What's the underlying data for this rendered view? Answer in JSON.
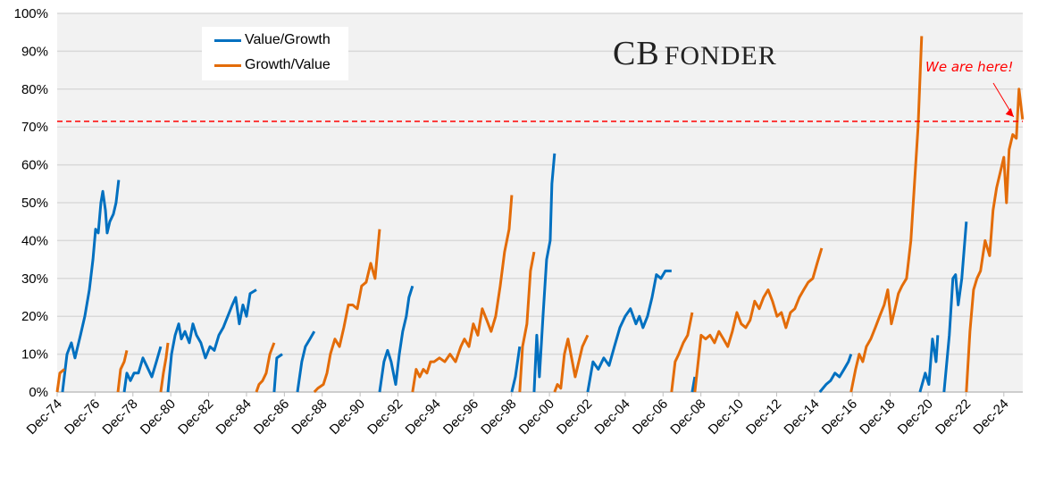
{
  "chart_data": {
    "type": "line",
    "title": "",
    "xlabel": "",
    "ylabel": "",
    "x_unit_note": "t = years after Dec-74",
    "xlim": [
      0,
      51
    ],
    "ylim": [
      0,
      100
    ],
    "grid": true,
    "legend_placement": "top-left",
    "y_ticks": [
      0,
      10,
      20,
      30,
      40,
      50,
      60,
      70,
      80,
      90,
      100
    ],
    "y_tick_labels": [
      "0%",
      "10%",
      "20%",
      "30%",
      "40%",
      "50%",
      "60%",
      "70%",
      "80%",
      "90%",
      "100%"
    ],
    "x_ticks": [
      0,
      2,
      4,
      6,
      8,
      10,
      12,
      14,
      16,
      18,
      20,
      22,
      24,
      26,
      28,
      30,
      32,
      34,
      36,
      38,
      40,
      42,
      44,
      46,
      48,
      50
    ],
    "x_tick_labels": [
      "Dec-74",
      "Dec-76",
      "Dec-78",
      "Dec-80",
      "Dec-82",
      "Dec-84",
      "Dec-86",
      "Dec-88",
      "Dec-90",
      "Dec-92",
      "Dec-94",
      "Dec-96",
      "Dec-98",
      "Dec-00",
      "Dec-02",
      "Dec-04",
      "Dec-06",
      "Dec-08",
      "Dec-10",
      "Dec-12",
      "Dec-14",
      "Dec-16",
      "Dec-18",
      "Dec-20",
      "Dec-22",
      "Dec-24"
    ],
    "reference_line": {
      "value": 71.5,
      "color": "#ff0000",
      "style": "dashed"
    },
    "annotation": {
      "text": "We are here!",
      "color": "#ff0000",
      "points_to": [
        50.8,
        71.5
      ]
    },
    "logo": "CB FONDER",
    "series": [
      {
        "name": "Value/Growth",
        "color": "#0070c0",
        "segments": [
          [
            [
              0.28,
              0
            ],
            [
              0.52,
              10
            ],
            [
              0.75,
              13
            ],
            [
              0.94,
              9
            ],
            [
              1.23,
              15
            ],
            [
              1.46,
              20
            ],
            [
              1.7,
              27
            ],
            [
              1.89,
              35
            ],
            [
              2.03,
              43
            ],
            [
              2.17,
              42
            ],
            [
              2.31,
              50
            ],
            [
              2.41,
              53
            ],
            [
              2.55,
              48
            ],
            [
              2.64,
              42
            ],
            [
              2.78,
              45
            ],
            [
              2.97,
              47
            ],
            [
              3.11,
              50
            ],
            [
              3.25,
              56
            ]
          ],
          [
            [
              3.54,
              0
            ],
            [
              3.68,
              5
            ],
            [
              3.87,
              3
            ],
            [
              4.06,
              5
            ],
            [
              4.29,
              5
            ],
            [
              4.53,
              9
            ],
            [
              4.72,
              7
            ],
            [
              5.0,
              4
            ],
            [
              5.24,
              8
            ],
            [
              5.47,
              12
            ]
          ],
          [
            [
              5.85,
              0
            ],
            [
              6.04,
              10
            ],
            [
              6.23,
              15
            ],
            [
              6.42,
              18
            ],
            [
              6.56,
              14
            ],
            [
              6.75,
              16
            ],
            [
              6.98,
              13
            ],
            [
              7.17,
              18
            ],
            [
              7.36,
              15
            ],
            [
              7.59,
              13
            ],
            [
              7.83,
              9
            ],
            [
              8.07,
              12
            ],
            [
              8.3,
              11
            ],
            [
              8.54,
              15
            ],
            [
              8.77,
              17
            ],
            [
              9.01,
              20
            ],
            [
              9.25,
              23
            ],
            [
              9.43,
              25
            ],
            [
              9.62,
              18
            ],
            [
              9.81,
              23
            ],
            [
              10.0,
              20
            ],
            [
              10.19,
              26
            ],
            [
              10.52,
              27
            ]
          ],
          [
            [
              11.46,
              0
            ],
            [
              11.6,
              9
            ],
            [
              11.89,
              10
            ]
          ],
          [
            [
              12.69,
              0
            ],
            [
              12.92,
              8
            ],
            [
              13.11,
              12
            ],
            [
              13.35,
              14
            ],
            [
              13.58,
              16
            ]
          ],
          [
            [
              17.03,
              0
            ],
            [
              17.26,
              8
            ],
            [
              17.45,
              11
            ],
            [
              17.64,
              8
            ],
            [
              17.88,
              2
            ],
            [
              18.07,
              10
            ],
            [
              18.25,
              16
            ],
            [
              18.44,
              20
            ],
            [
              18.58,
              25
            ],
            [
              18.77,
              28
            ]
          ],
          [
            [
              24.01,
              0
            ],
            [
              24.2,
              4
            ],
            [
              24.43,
              12
            ]
          ],
          [
            [
              25.19,
              0
            ],
            [
              25.33,
              15
            ],
            [
              25.47,
              4
            ],
            [
              25.66,
              20
            ],
            [
              25.85,
              35
            ],
            [
              26.04,
              40
            ],
            [
              26.13,
              55
            ],
            [
              26.27,
              63
            ]
          ],
          [
            [
              28.02,
              0
            ],
            [
              28.3,
              8
            ],
            [
              28.58,
              6
            ],
            [
              28.87,
              9
            ],
            [
              29.15,
              7
            ],
            [
              29.43,
              12
            ],
            [
              29.72,
              17
            ],
            [
              30.0,
              20
            ],
            [
              30.28,
              22
            ],
            [
              30.57,
              18
            ],
            [
              30.75,
              20
            ],
            [
              30.94,
              17
            ],
            [
              31.18,
              20
            ],
            [
              31.42,
              25
            ],
            [
              31.65,
              31
            ],
            [
              31.89,
              30
            ],
            [
              32.12,
              32
            ],
            [
              32.45,
              32
            ]
          ],
          [
            [
              33.54,
              0
            ],
            [
              33.68,
              4
            ]
          ],
          [
            [
              40.28,
              0
            ],
            [
              40.61,
              2
            ],
            [
              40.85,
              3
            ],
            [
              41.08,
              5
            ],
            [
              41.32,
              4
            ],
            [
              41.56,
              6
            ],
            [
              41.79,
              8
            ],
            [
              41.93,
              10
            ]
          ],
          [
            [
              45.57,
              0
            ],
            [
              45.85,
              5
            ],
            [
              46.04,
              2
            ],
            [
              46.23,
              14
            ],
            [
              46.42,
              8
            ],
            [
              46.51,
              15
            ]
          ],
          [
            [
              46.84,
              0
            ],
            [
              47.12,
              15
            ],
            [
              47.31,
              30
            ],
            [
              47.45,
              31
            ],
            [
              47.59,
              23
            ],
            [
              47.78,
              30
            ],
            [
              48.02,
              45
            ]
          ]
        ]
      },
      {
        "name": "Growth/Value",
        "color": "#e36c09",
        "segments": [
          [
            [
              0,
              0
            ],
            [
              0.14,
              5
            ],
            [
              0.38,
              6
            ]
          ],
          [
            [
              3.21,
              0
            ],
            [
              3.35,
              6
            ],
            [
              3.54,
              8
            ],
            [
              3.68,
              11
            ]
          ],
          [
            [
              5.47,
              0
            ],
            [
              5.61,
              5
            ],
            [
              5.75,
              9
            ],
            [
              5.85,
              13
            ]
          ],
          [
            [
              10.52,
              0
            ],
            [
              10.66,
              2
            ],
            [
              10.85,
              3
            ],
            [
              11.04,
              5
            ],
            [
              11.23,
              10
            ],
            [
              11.46,
              13
            ]
          ],
          [
            [
              13.58,
              0
            ],
            [
              13.77,
              1
            ],
            [
              14.06,
              2
            ],
            [
              14.25,
              5
            ],
            [
              14.43,
              10
            ],
            [
              14.67,
              14
            ],
            [
              14.91,
              12
            ],
            [
              15.14,
              17
            ],
            [
              15.38,
              23
            ],
            [
              15.61,
              23
            ],
            [
              15.85,
              22
            ],
            [
              16.08,
              28
            ],
            [
              16.32,
              29
            ],
            [
              16.56,
              34
            ],
            [
              16.79,
              30
            ],
            [
              17.03,
              43
            ]
          ],
          [
            [
              18.77,
              0
            ],
            [
              18.96,
              6
            ],
            [
              19.15,
              4
            ],
            [
              19.34,
              6
            ],
            [
              19.53,
              5
            ],
            [
              19.72,
              8
            ],
            [
              19.91,
              8
            ],
            [
              20.19,
              9
            ],
            [
              20.47,
              8
            ],
            [
              20.75,
              10
            ],
            [
              21.04,
              8
            ],
            [
              21.32,
              12
            ],
            [
              21.51,
              14
            ],
            [
              21.75,
              12
            ],
            [
              21.98,
              18
            ],
            [
              22.22,
              15
            ],
            [
              22.45,
              22
            ],
            [
              22.69,
              19
            ],
            [
              22.92,
              16
            ],
            [
              23.16,
              20
            ],
            [
              23.4,
              28
            ],
            [
              23.63,
              37
            ],
            [
              23.87,
              43
            ],
            [
              24.01,
              52
            ]
          ],
          [
            [
              24.43,
              0
            ],
            [
              24.58,
              12
            ],
            [
              24.81,
              18
            ],
            [
              25.0,
              32
            ],
            [
              25.19,
              37
            ]
          ],
          [
            [
              26.27,
              0
            ],
            [
              26.42,
              2
            ],
            [
              26.6,
              1
            ],
            [
              26.79,
              10
            ],
            [
              26.98,
              14
            ],
            [
              27.17,
              9
            ],
            [
              27.36,
              4
            ],
            [
              27.55,
              8
            ],
            [
              27.74,
              12
            ],
            [
              28.02,
              15
            ]
          ],
          [
            [
              32.45,
              0
            ],
            [
              32.64,
              8
            ],
            [
              32.83,
              10
            ],
            [
              33.07,
              13
            ],
            [
              33.3,
              15
            ],
            [
              33.54,
              21
            ]
          ],
          [
            [
              33.68,
              0
            ],
            [
              34.01,
              15
            ],
            [
              34.25,
              14
            ],
            [
              34.48,
              15
            ],
            [
              34.72,
              13
            ],
            [
              34.95,
              16
            ],
            [
              35.19,
              14
            ],
            [
              35.42,
              12
            ],
            [
              35.66,
              16
            ],
            [
              35.9,
              21
            ],
            [
              36.13,
              18
            ],
            [
              36.37,
              17
            ],
            [
              36.6,
              19
            ],
            [
              36.84,
              24
            ],
            [
              37.08,
              22
            ],
            [
              37.31,
              25
            ],
            [
              37.55,
              27
            ],
            [
              37.78,
              24
            ],
            [
              38.02,
              20
            ],
            [
              38.25,
              21
            ],
            [
              38.49,
              17
            ],
            [
              38.73,
              21
            ],
            [
              38.96,
              22
            ],
            [
              39.2,
              25
            ],
            [
              39.43,
              27
            ],
            [
              39.67,
              29
            ],
            [
              39.91,
              30
            ],
            [
              40.14,
              34
            ],
            [
              40.38,
              38
            ]
          ],
          [
            [
              41.93,
              0
            ],
            [
              42.17,
              6
            ],
            [
              42.36,
              10
            ],
            [
              42.55,
              8
            ],
            [
              42.74,
              12
            ],
            [
              42.97,
              14
            ],
            [
              43.21,
              17
            ],
            [
              43.44,
              20
            ],
            [
              43.68,
              23
            ],
            [
              43.87,
              27
            ],
            [
              44.06,
              18
            ],
            [
              44.25,
              22
            ],
            [
              44.43,
              26
            ],
            [
              44.62,
              28
            ],
            [
              44.86,
              30
            ],
            [
              45.09,
              40
            ],
            [
              45.28,
              55
            ],
            [
              45.47,
              70
            ],
            [
              45.66,
              94
            ]
          ],
          [
            [
              48.02,
              0
            ],
            [
              48.21,
              16
            ],
            [
              48.4,
              27
            ],
            [
              48.58,
              30
            ],
            [
              48.77,
              32
            ],
            [
              49.01,
              40
            ],
            [
              49.25,
              36
            ],
            [
              49.43,
              48
            ],
            [
              49.62,
              54
            ],
            [
              49.81,
              58
            ],
            [
              50.0,
              62
            ],
            [
              50.14,
              50
            ],
            [
              50.28,
              64
            ],
            [
              50.47,
              68
            ],
            [
              50.66,
              67
            ],
            [
              50.8,
              80
            ],
            [
              50.99,
              72
            ]
          ]
        ]
      }
    ]
  }
}
